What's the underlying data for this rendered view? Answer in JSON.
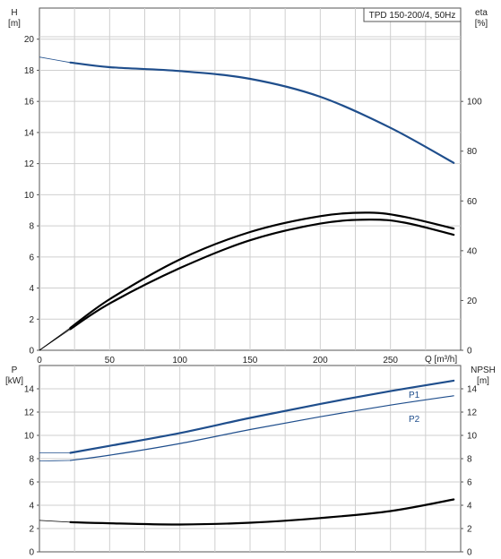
{
  "chart_data": [
    {
      "type": "line",
      "title": "TPD 150-200/4, 50Hz",
      "xlabel": "Q [m³/h]",
      "x_ticks": [
        0,
        50,
        100,
        150,
        200,
        250
      ],
      "xlim": [
        0,
        300
      ],
      "ylabel_left": {
        "name": "H",
        "unit": "[m]"
      },
      "ylabel_right": {
        "name": "eta",
        "unit": "[%]"
      },
      "ylim_left": [
        0,
        22
      ],
      "ylim_right": [
        0,
        137.5
      ],
      "y_ticks_left": [
        0,
        2,
        4,
        6,
        8,
        10,
        12,
        14,
        16,
        18,
        20
      ],
      "y_ticks_right": [
        0,
        20,
        40,
        60,
        80,
        100
      ],
      "grid": true,
      "series": [
        {
          "axis": "left",
          "color": "#1f4e8c",
          "x": [
            0,
            22,
            50,
            100,
            150,
            200,
            250,
            295
          ],
          "y": [
            18.85,
            18.5,
            18.2,
            17.95,
            17.45,
            16.3,
            14.3,
            12.05
          ],
          "solid_from_x": 22
        },
        {
          "axis": "right",
          "color": "#000000",
          "x": [
            0,
            22,
            50,
            100,
            150,
            200,
            235,
            260,
            295
          ],
          "y": [
            0,
            8.5,
            18.8,
            33,
            44.2,
            50.9,
            52.5,
            51.3,
            46.4
          ],
          "solid_from_x": 22
        },
        {
          "axis": "right",
          "color": "#000000",
          "x": [
            0,
            22,
            50,
            100,
            150,
            200,
            235,
            260,
            295
          ],
          "y": [
            0,
            9,
            20.5,
            36.5,
            47.5,
            53.9,
            55.3,
            53.6,
            48.9
          ],
          "solid_from_x": 22
        }
      ]
    },
    {
      "type": "line",
      "xlim": [
        0,
        300
      ],
      "ylabel_left": {
        "name": "P",
        "unit": "[kW]"
      },
      "ylabel_right": {
        "name": "NPSH",
        "unit": "[m]"
      },
      "ylim_left": [
        0,
        16
      ],
      "ylim_right": [
        0,
        16
      ],
      "y_ticks_left": [
        0,
        2,
        4,
        6,
        8,
        10,
        12,
        14
      ],
      "y_ticks_right": [
        0,
        2,
        4,
        6,
        8,
        10,
        12,
        14
      ],
      "grid": true,
      "series": [
        {
          "name": "P1",
          "axis": "left",
          "color": "#1f4e8c",
          "x": [
            0,
            22,
            50,
            100,
            150,
            200,
            250,
            295
          ],
          "y": [
            8.5,
            8.5,
            9.1,
            10.2,
            11.5,
            12.7,
            13.8,
            14.7
          ],
          "solid_from_x": 22
        },
        {
          "name": "P2",
          "axis": "left",
          "color": "#1f4e8c",
          "x": [
            0,
            22,
            50,
            100,
            150,
            200,
            250,
            295
          ],
          "y": [
            7.8,
            7.85,
            8.3,
            9.3,
            10.5,
            11.6,
            12.6,
            13.4
          ],
          "solid_from_x": 22
        },
        {
          "axis": "right",
          "color": "#000000",
          "x": [
            0,
            22,
            50,
            100,
            150,
            200,
            250,
            295
          ],
          "y": [
            2.7,
            2.55,
            2.45,
            2.35,
            2.5,
            2.9,
            3.5,
            4.5
          ],
          "solid_from_x": 22
        }
      ]
    }
  ]
}
